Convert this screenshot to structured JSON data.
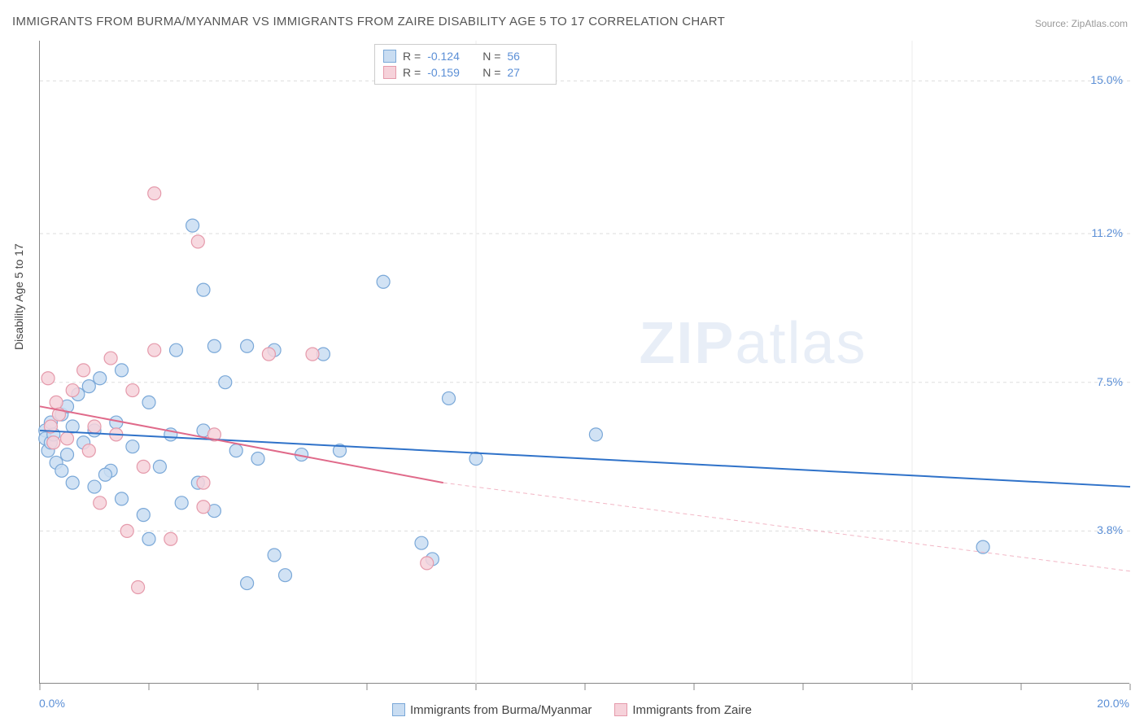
{
  "title": "IMMIGRANTS FROM BURMA/MYANMAR VS IMMIGRANTS FROM ZAIRE DISABILITY AGE 5 TO 17 CORRELATION CHART",
  "source_label": "Source: ZipAtlas.com",
  "ylabel": "Disability Age 5 to 17",
  "watermark": {
    "bold": "ZIP",
    "light": "atlas"
  },
  "chart": {
    "type": "scatter",
    "xlim": [
      0,
      20
    ],
    "ylim": [
      0,
      16
    ],
    "x_axis_labels": {
      "min": "0.0%",
      "max": "20.0%"
    },
    "y_ticks": [
      {
        "v": 3.8,
        "label": "3.8%"
      },
      {
        "v": 7.5,
        "label": "7.5%"
      },
      {
        "v": 11.2,
        "label": "11.2%"
      },
      {
        "v": 15.0,
        "label": "15.0%"
      }
    ],
    "x_tick_positions": [
      0,
      2,
      4,
      6,
      8,
      10,
      12,
      14,
      16,
      18,
      20
    ],
    "x_gridlines_major": [
      8,
      16
    ],
    "marker_radius": 8,
    "marker_stroke_width": 1.2,
    "grid_color": "#dddddd",
    "background_color": "#ffffff"
  },
  "series": [
    {
      "name": "Immigrants from Burma/Myanmar",
      "color_fill": "#c9ddf2",
      "color_stroke": "#7aa8d8",
      "r_label": "R =",
      "r_value": "-0.124",
      "n_label": "N =",
      "n_value": "56",
      "regression": {
        "x1": 0,
        "y1": 6.3,
        "x2": 20,
        "y2": 4.9,
        "color": "#2f72c9",
        "width": 2,
        "dash": ""
      },
      "points": [
        {
          "x": 0.1,
          "y": 6.3
        },
        {
          "x": 0.1,
          "y": 6.1
        },
        {
          "x": 0.15,
          "y": 5.8
        },
        {
          "x": 0.2,
          "y": 6.5
        },
        {
          "x": 0.2,
          "y": 6.0
        },
        {
          "x": 0.25,
          "y": 6.2
        },
        {
          "x": 0.3,
          "y": 5.5
        },
        {
          "x": 0.4,
          "y": 6.7
        },
        {
          "x": 0.4,
          "y": 5.3
        },
        {
          "x": 0.5,
          "y": 6.9
        },
        {
          "x": 0.6,
          "y": 6.4
        },
        {
          "x": 0.6,
          "y": 5.0
        },
        {
          "x": 0.7,
          "y": 7.2
        },
        {
          "x": 0.8,
          "y": 6.0
        },
        {
          "x": 0.9,
          "y": 7.4
        },
        {
          "x": 1.0,
          "y": 6.3
        },
        {
          "x": 1.0,
          "y": 4.9
        },
        {
          "x": 1.1,
          "y": 7.6
        },
        {
          "x": 1.3,
          "y": 5.3
        },
        {
          "x": 1.4,
          "y": 6.5
        },
        {
          "x": 1.5,
          "y": 7.8
        },
        {
          "x": 1.5,
          "y": 4.6
        },
        {
          "x": 1.7,
          "y": 5.9
        },
        {
          "x": 1.9,
          "y": 4.2
        },
        {
          "x": 2.0,
          "y": 7.0
        },
        {
          "x": 2.0,
          "y": 3.6
        },
        {
          "x": 2.2,
          "y": 5.4
        },
        {
          "x": 2.4,
          "y": 6.2
        },
        {
          "x": 2.5,
          "y": 8.3
        },
        {
          "x": 2.6,
          "y": 4.5
        },
        {
          "x": 2.8,
          "y": 11.4
        },
        {
          "x": 2.9,
          "y": 5.0
        },
        {
          "x": 3.0,
          "y": 9.8
        },
        {
          "x": 3.0,
          "y": 6.3
        },
        {
          "x": 3.2,
          "y": 8.4
        },
        {
          "x": 3.2,
          "y": 4.3
        },
        {
          "x": 3.4,
          "y": 7.5
        },
        {
          "x": 3.6,
          "y": 5.8
        },
        {
          "x": 3.8,
          "y": 8.4
        },
        {
          "x": 3.8,
          "y": 2.5
        },
        {
          "x": 4.0,
          "y": 5.6
        },
        {
          "x": 4.3,
          "y": 8.3
        },
        {
          "x": 4.3,
          "y": 3.2
        },
        {
          "x": 4.5,
          "y": 2.7
        },
        {
          "x": 4.8,
          "y": 5.7
        },
        {
          "x": 5.2,
          "y": 8.2
        },
        {
          "x": 5.5,
          "y": 5.8
        },
        {
          "x": 6.3,
          "y": 10.0
        },
        {
          "x": 7.0,
          "y": 3.5
        },
        {
          "x": 7.2,
          "y": 3.1
        },
        {
          "x": 7.5,
          "y": 7.1
        },
        {
          "x": 8.0,
          "y": 5.6
        },
        {
          "x": 10.2,
          "y": 6.2
        },
        {
          "x": 17.3,
          "y": 3.4
        },
        {
          "x": 1.2,
          "y": 5.2
        },
        {
          "x": 0.5,
          "y": 5.7
        }
      ]
    },
    {
      "name": "Immigrants from Zaire",
      "color_fill": "#f6d2da",
      "color_stroke": "#e59aab",
      "r_label": "R =",
      "r_value": "-0.159",
      "n_label": "N =",
      "n_value": "27",
      "regression": {
        "x1": 0,
        "y1": 6.9,
        "x2": 7.4,
        "y2": 5.0,
        "color": "#e06a8a",
        "width": 2,
        "dash": ""
      },
      "regression_ext": {
        "x1": 7.4,
        "y1": 5.0,
        "x2": 20,
        "y2": 2.8,
        "color": "#f2b6c5",
        "width": 1,
        "dash": "5,4"
      },
      "points": [
        {
          "x": 0.15,
          "y": 7.6
        },
        {
          "x": 0.2,
          "y": 6.4
        },
        {
          "x": 0.25,
          "y": 6.0
        },
        {
          "x": 0.3,
          "y": 7.0
        },
        {
          "x": 0.35,
          "y": 6.7
        },
        {
          "x": 0.5,
          "y": 6.1
        },
        {
          "x": 0.6,
          "y": 7.3
        },
        {
          "x": 0.8,
          "y": 7.8
        },
        {
          "x": 0.9,
          "y": 5.8
        },
        {
          "x": 1.0,
          "y": 6.4
        },
        {
          "x": 1.1,
          "y": 4.5
        },
        {
          "x": 1.3,
          "y": 8.1
        },
        {
          "x": 1.4,
          "y": 6.2
        },
        {
          "x": 1.6,
          "y": 3.8
        },
        {
          "x": 1.7,
          "y": 7.3
        },
        {
          "x": 1.8,
          "y": 2.4
        },
        {
          "x": 1.9,
          "y": 5.4
        },
        {
          "x": 2.1,
          "y": 8.3
        },
        {
          "x": 2.1,
          "y": 12.2
        },
        {
          "x": 2.4,
          "y": 3.6
        },
        {
          "x": 2.9,
          "y": 11.0
        },
        {
          "x": 3.0,
          "y": 4.4
        },
        {
          "x": 3.0,
          "y": 5.0
        },
        {
          "x": 3.2,
          "y": 6.2
        },
        {
          "x": 4.2,
          "y": 8.2
        },
        {
          "x": 5.0,
          "y": 8.2
        },
        {
          "x": 7.1,
          "y": 3.0
        }
      ]
    }
  ],
  "legend_bottom": [
    {
      "label": "Immigrants from Burma/Myanmar",
      "fill": "#c9ddf2",
      "stroke": "#7aa8d8"
    },
    {
      "label": "Immigrants from Zaire",
      "fill": "#f6d2da",
      "stroke": "#e59aab"
    }
  ]
}
